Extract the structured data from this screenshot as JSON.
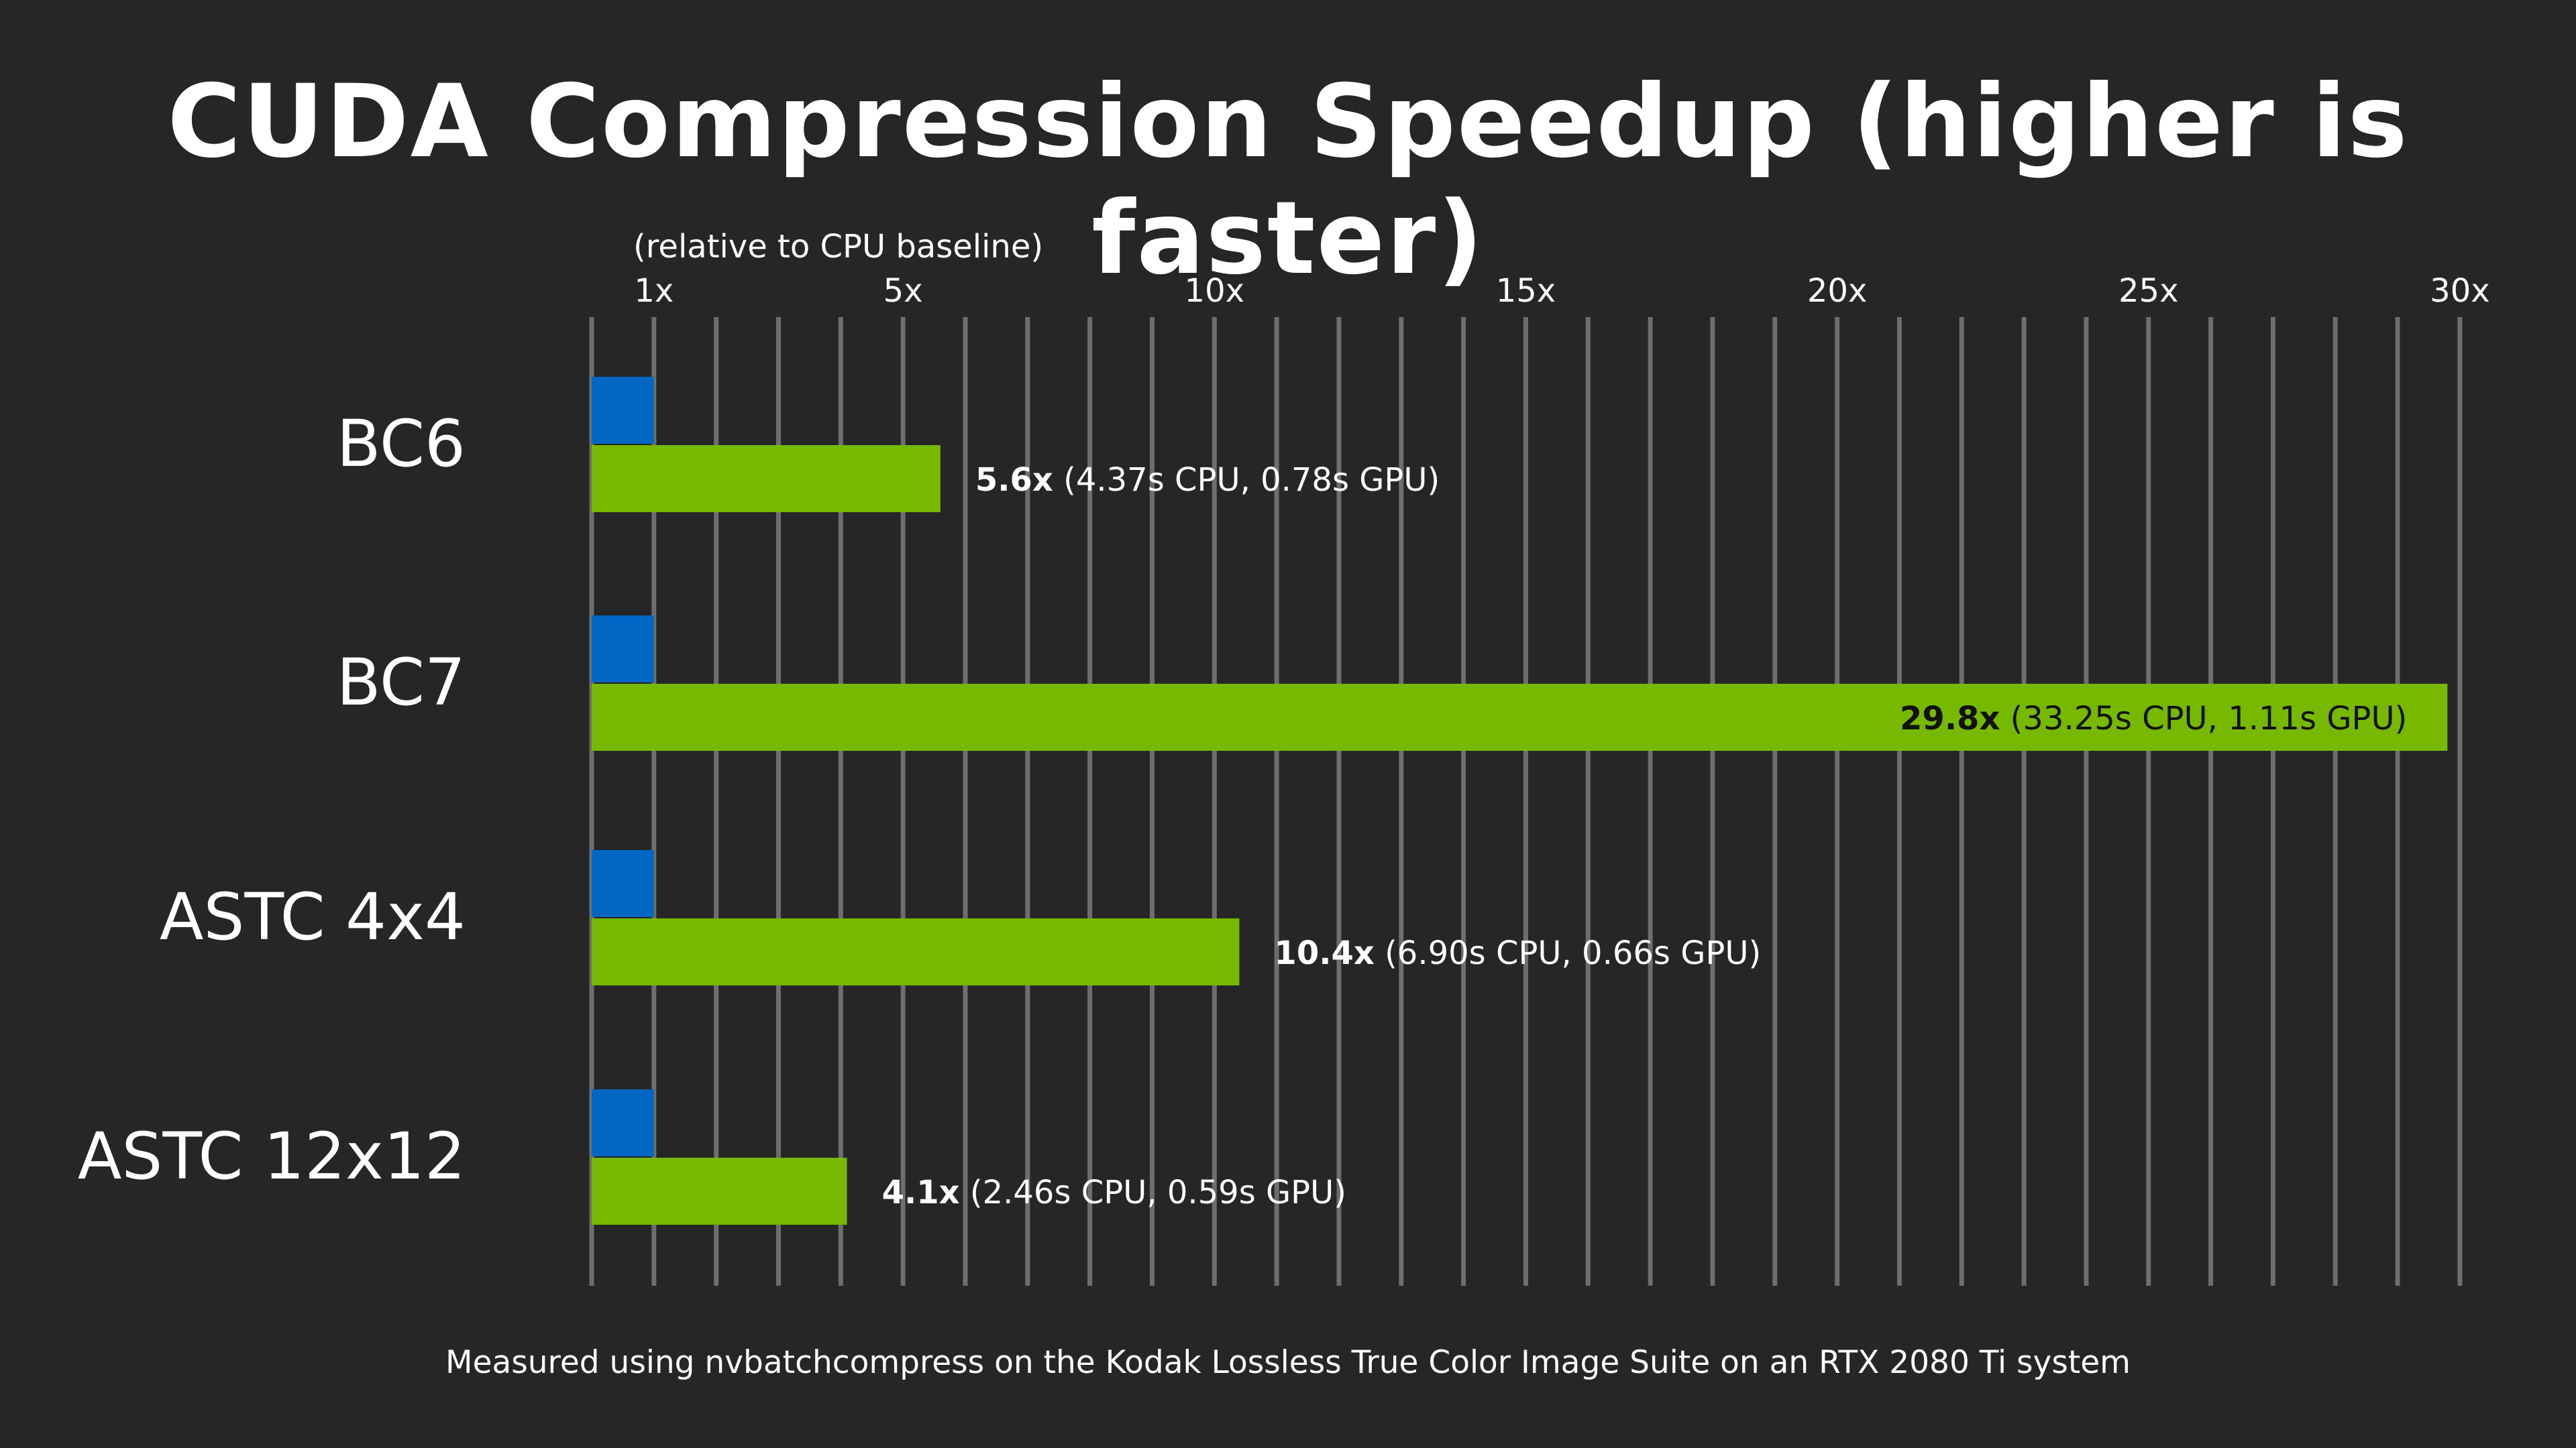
{
  "chart_data": {
    "type": "bar",
    "title": "CUDA Compression Speedup (higher is faster)",
    "axis_caption": "(relative to CPU baseline)",
    "xlim": [
      0,
      30
    ],
    "ticks": [
      {
        "value": 1,
        "label": "1x"
      },
      {
        "value": 5,
        "label": "5x"
      },
      {
        "value": 10,
        "label": "10x"
      },
      {
        "value": 15,
        "label": "15x"
      },
      {
        "value": 20,
        "label": "20x"
      },
      {
        "value": 25,
        "label": "25x"
      },
      {
        "value": 30,
        "label": "30x"
      }
    ],
    "gridlines": [
      0,
      1,
      2,
      3,
      4,
      5,
      6,
      7,
      8,
      9,
      10,
      11,
      12,
      13,
      14,
      15,
      16,
      17,
      18,
      19,
      20,
      21,
      22,
      23,
      24,
      25,
      26,
      27,
      28,
      29,
      30
    ],
    "grid": true,
    "categories": [
      "BC6",
      "BC7",
      "ASTC 4x4",
      "ASTC 12x12"
    ],
    "series": [
      {
        "role": "cpu",
        "color": "#0068c4",
        "values": [
          1,
          1,
          1,
          1
        ]
      },
      {
        "role": "gpu",
        "color": "#76b900",
        "values": [
          5.6,
          29.8,
          10.4,
          4.1
        ]
      }
    ],
    "data_labels": [
      {
        "speedup": "5.6x",
        "detail": "(4.37s CPU, 0.78s GPU)",
        "inside": false
      },
      {
        "speedup": "29.8x",
        "detail": "(33.25s CPU, 1.11s GPU)",
        "inside": true
      },
      {
        "speedup": "10.4x",
        "detail": "(6.90s CPU, 0.66s GPU)",
        "inside": false
      },
      {
        "speedup": "4.1x",
        "detail": "(2.46s CPU, 0.59s GPU)",
        "inside": false
      }
    ],
    "footnote": "Measured using nvbatchcompress on the Kodak Lossless True Color Image Suite on an RTX 2080 Ti system",
    "colors": {
      "background": "#262626",
      "grid": "#6e6e6e",
      "text": "#ffffff",
      "inside_label": "#111111"
    }
  }
}
